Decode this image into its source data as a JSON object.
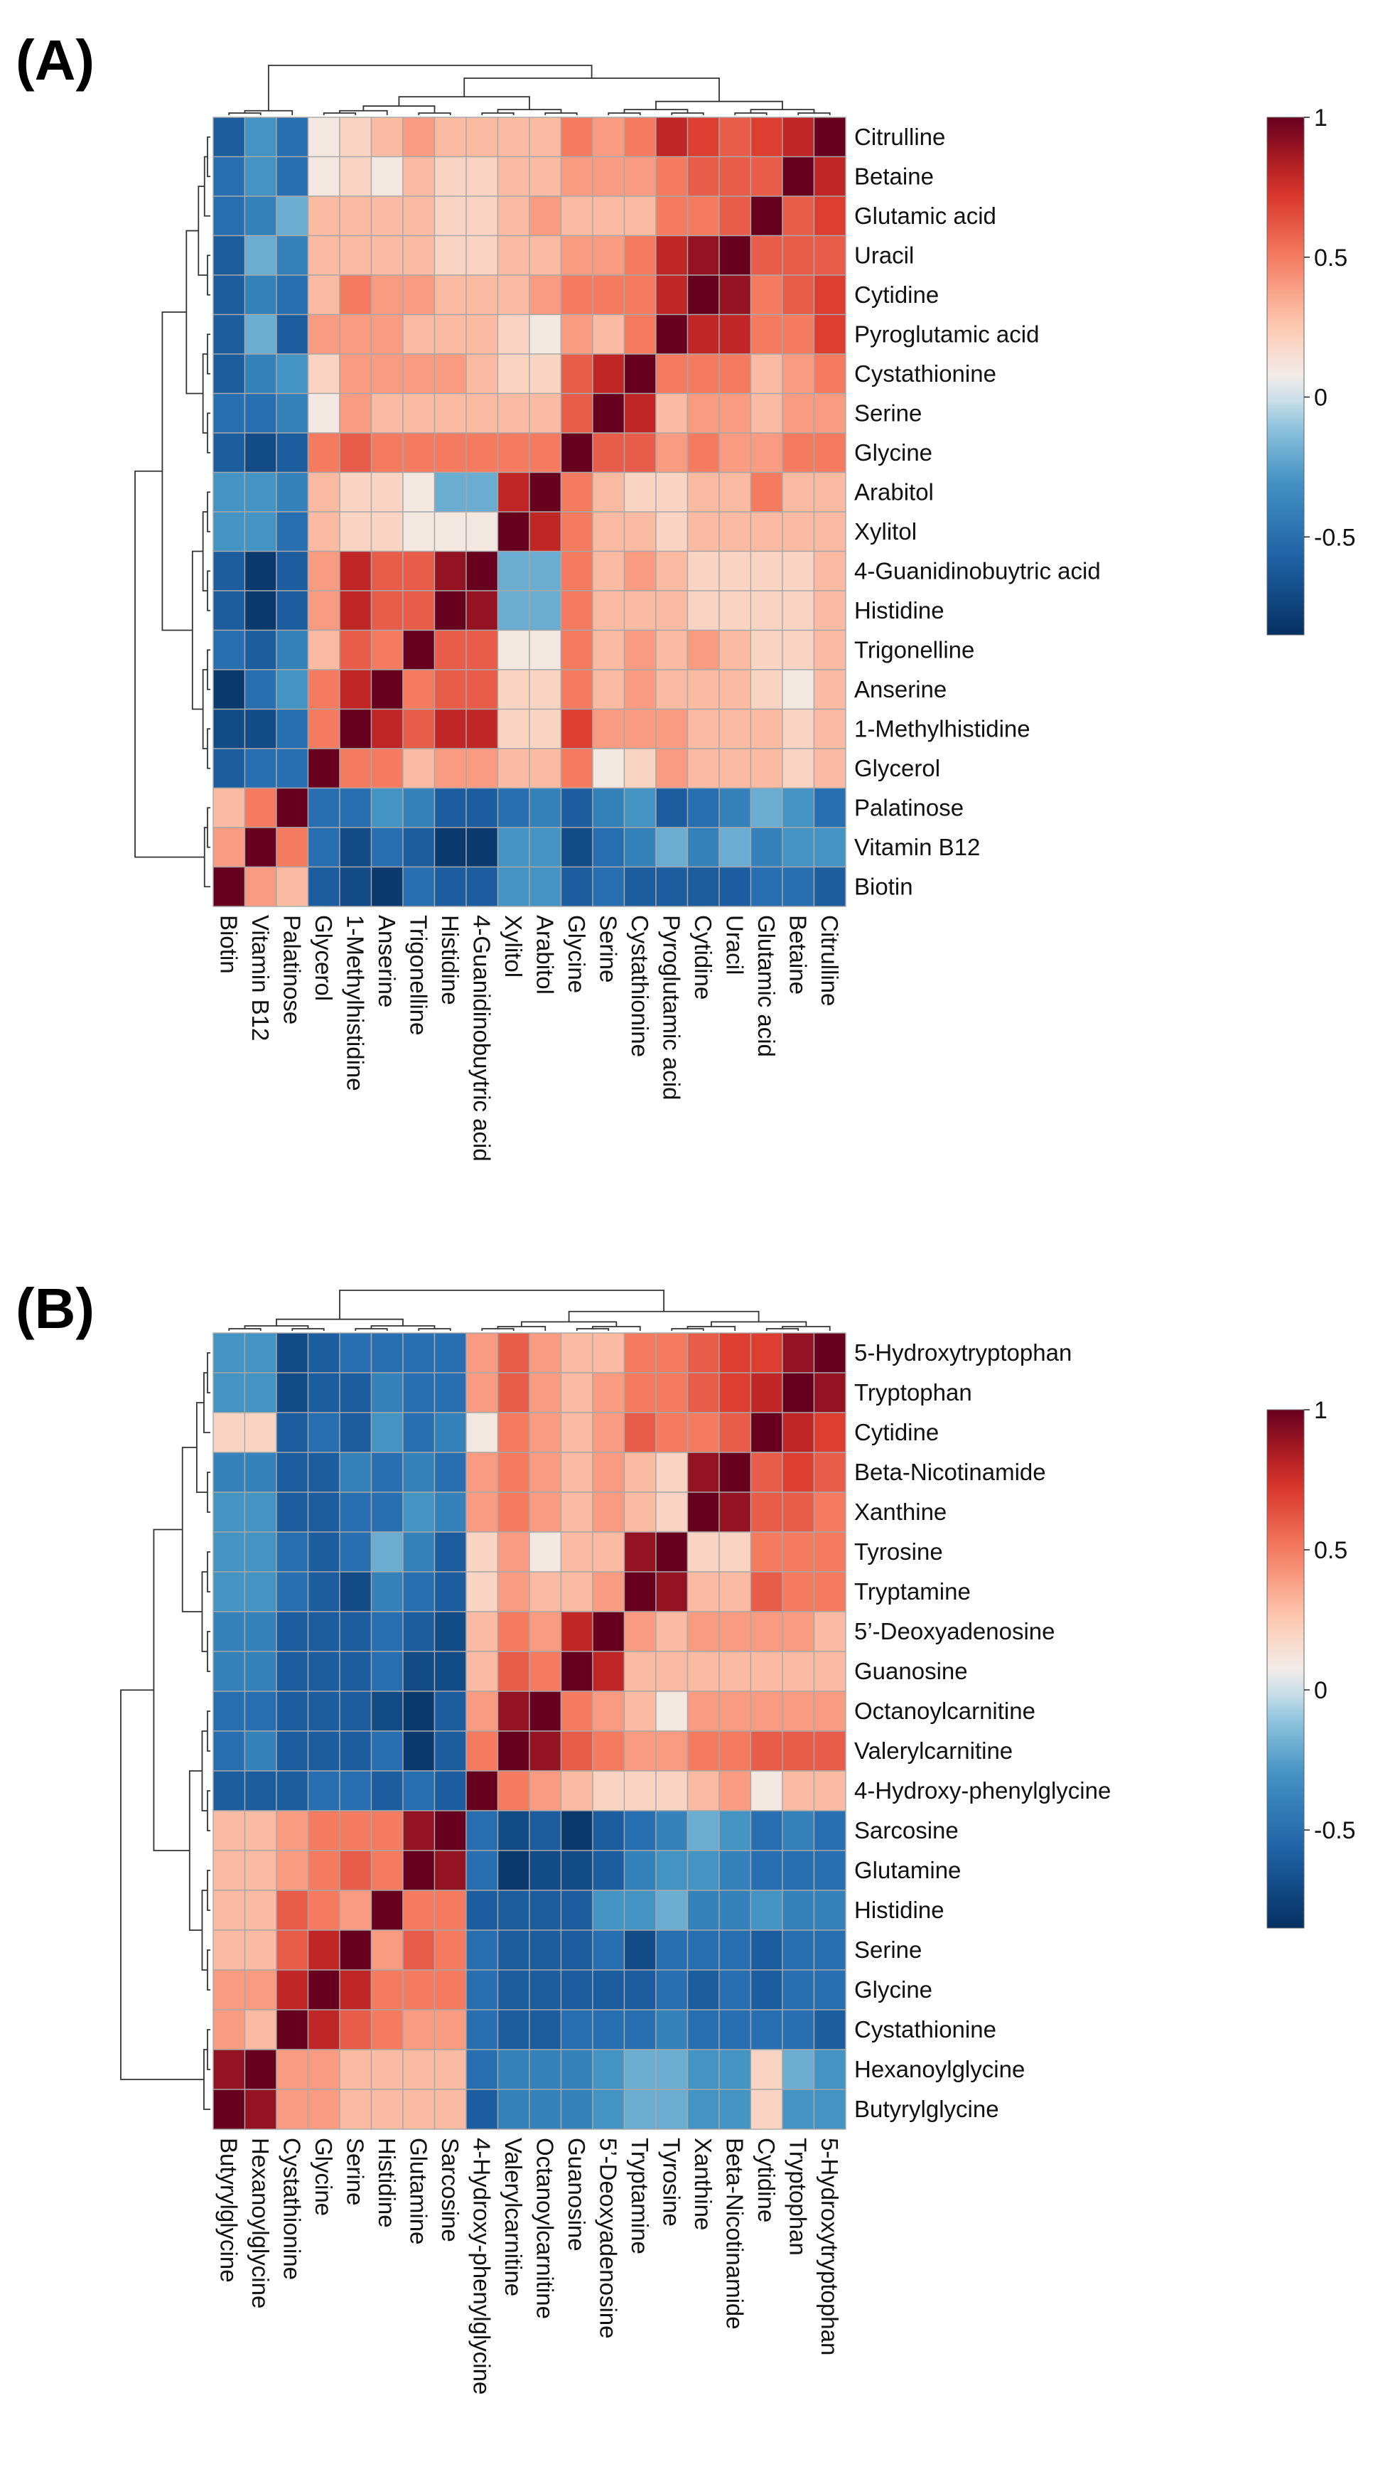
{
  "figure": {
    "panel_labels": [
      "(A)",
      "(B)"
    ]
  },
  "chart_data": [
    {
      "type": "heatmap",
      "panel": "(A)",
      "title": "",
      "row_labels": [
        "Citrulline",
        "Betaine",
        "Glutamic acid",
        "Uracil",
        "Cytidine",
        "Pyroglutamic acid",
        "Cystathionine",
        "Serine",
        "Glycine",
        "Arabitol",
        "Xylitol",
        "4-Guanidinobuytric acid",
        "Histidine",
        "Trigonelline",
        "Anserine",
        "1-Methylhistidine",
        "Glycerol",
        "Palatinose",
        "Vitamin B12",
        "Biotin"
      ],
      "col_labels": [
        "Biotin",
        "Vitamin B12",
        "Palatinose",
        "Glycerol",
        "1-Methylhistidine",
        "Anserine",
        "Trigonelline",
        "Histidine",
        "4-Guanidinobuytric acid",
        "Xylitol",
        "Arabitol",
        "Glycine",
        "Serine",
        "Cystathionine",
        "Pyroglutamic acid",
        "Cytidine",
        "Uracil",
        "Glutamic acid",
        "Betaine",
        "Citrulline"
      ],
      "values": [
        [
          -0.6,
          -0.3,
          -0.5,
          0.1,
          0.2,
          0.3,
          0.4,
          0.3,
          0.3,
          0.3,
          0.3,
          0.5,
          0.4,
          0.5,
          0.8,
          0.7,
          0.6,
          0.7,
          0.8,
          1.0
        ],
        [
          -0.5,
          -0.3,
          -0.5,
          0.1,
          0.2,
          0.1,
          0.3,
          0.2,
          0.2,
          0.3,
          0.3,
          0.4,
          0.4,
          0.4,
          0.5,
          0.6,
          0.6,
          0.6,
          1.0,
          0.8
        ],
        [
          -0.5,
          -0.4,
          -0.2,
          0.3,
          0.3,
          0.3,
          0.3,
          0.2,
          0.2,
          0.3,
          0.4,
          0.3,
          0.3,
          0.3,
          0.5,
          0.5,
          0.6,
          1.0,
          0.6,
          0.7
        ],
        [
          -0.6,
          -0.2,
          -0.4,
          0.3,
          0.3,
          0.3,
          0.3,
          0.2,
          0.2,
          0.3,
          0.3,
          0.4,
          0.4,
          0.5,
          0.8,
          0.9,
          1.0,
          0.6,
          0.6,
          0.6
        ],
        [
          -0.6,
          -0.4,
          -0.5,
          0.3,
          0.5,
          0.4,
          0.4,
          0.3,
          0.3,
          0.3,
          0.4,
          0.5,
          0.5,
          0.5,
          0.8,
          1.0,
          0.9,
          0.5,
          0.6,
          0.7
        ],
        [
          -0.6,
          -0.2,
          -0.6,
          0.4,
          0.4,
          0.4,
          0.3,
          0.3,
          0.3,
          0.2,
          0.1,
          0.4,
          0.3,
          0.5,
          1.0,
          0.8,
          0.8,
          0.5,
          0.5,
          0.7
        ],
        [
          -0.6,
          -0.4,
          -0.3,
          0.2,
          0.4,
          0.4,
          0.4,
          0.4,
          0.3,
          0.2,
          0.2,
          0.6,
          0.8,
          1.0,
          0.5,
          0.5,
          0.5,
          0.3,
          0.4,
          0.5
        ],
        [
          -0.5,
          -0.5,
          -0.4,
          0.1,
          0.4,
          0.3,
          0.3,
          0.3,
          0.3,
          0.3,
          0.3,
          0.6,
          1.0,
          0.8,
          0.3,
          0.4,
          0.4,
          0.3,
          0.4,
          0.4
        ],
        [
          -0.6,
          -0.7,
          -0.6,
          0.5,
          0.6,
          0.5,
          0.5,
          0.5,
          0.5,
          0.5,
          0.5,
          1.0,
          0.6,
          0.6,
          0.4,
          0.5,
          0.4,
          0.4,
          0.5,
          0.5
        ],
        [
          -0.3,
          -0.3,
          -0.4,
          0.3,
          0.2,
          0.2,
          0.1,
          -0.2,
          -0.2,
          0.8,
          1.0,
          0.5,
          0.3,
          0.2,
          0.2,
          0.3,
          0.3,
          0.5,
          0.3,
          0.3
        ],
        [
          -0.3,
          -0.3,
          -0.5,
          0.3,
          0.2,
          0.2,
          0.1,
          0.1,
          0.1,
          1.0,
          0.8,
          0.5,
          0.3,
          0.3,
          0.2,
          0.3,
          0.3,
          0.3,
          0.3,
          0.3
        ],
        [
          -0.6,
          -0.8,
          -0.6,
          0.4,
          0.8,
          0.6,
          0.6,
          0.9,
          1.0,
          -0.2,
          -0.2,
          0.5,
          0.3,
          0.4,
          0.3,
          0.2,
          0.2,
          0.2,
          0.2,
          0.3
        ],
        [
          -0.6,
          -0.8,
          -0.6,
          0.4,
          0.8,
          0.6,
          0.6,
          1.0,
          0.9,
          -0.2,
          -0.2,
          0.5,
          0.3,
          0.3,
          0.3,
          0.2,
          0.2,
          0.2,
          0.2,
          0.3
        ],
        [
          -0.5,
          -0.6,
          -0.4,
          0.3,
          0.6,
          0.5,
          1.0,
          0.6,
          0.6,
          0.1,
          0.1,
          0.5,
          0.3,
          0.4,
          0.3,
          0.4,
          0.3,
          0.2,
          0.2,
          0.3
        ],
        [
          -0.8,
          -0.5,
          -0.3,
          0.5,
          0.8,
          1.0,
          0.5,
          0.6,
          0.6,
          0.2,
          0.2,
          0.5,
          0.3,
          0.4,
          0.3,
          0.3,
          0.3,
          0.2,
          0.1,
          0.3
        ],
        [
          -0.7,
          -0.7,
          -0.5,
          0.5,
          1.0,
          0.8,
          0.6,
          0.8,
          0.8,
          0.2,
          0.2,
          0.7,
          0.4,
          0.4,
          0.4,
          0.3,
          0.3,
          0.3,
          0.2,
          0.3
        ],
        [
          -0.6,
          -0.5,
          -0.5,
          1.0,
          0.5,
          0.5,
          0.3,
          0.4,
          0.4,
          0.3,
          0.3,
          0.5,
          0.1,
          0.2,
          0.4,
          0.3,
          0.3,
          0.3,
          0.2,
          0.3
        ],
        [
          0.3,
          0.5,
          1.0,
          -0.5,
          -0.5,
          -0.3,
          -0.4,
          -0.6,
          -0.6,
          -0.5,
          -0.4,
          -0.6,
          -0.4,
          -0.3,
          -0.6,
          -0.5,
          -0.4,
          -0.2,
          -0.3,
          -0.5
        ],
        [
          0.4,
          1.0,
          0.5,
          -0.5,
          -0.7,
          -0.5,
          -0.6,
          -0.8,
          -0.8,
          -0.3,
          -0.3,
          -0.7,
          -0.5,
          -0.4,
          -0.2,
          -0.4,
          -0.2,
          -0.4,
          -0.3,
          -0.3
        ],
        [
          1.0,
          0.4,
          0.3,
          -0.6,
          -0.7,
          -0.8,
          -0.5,
          -0.6,
          -0.6,
          -0.3,
          -0.3,
          -0.6,
          -0.5,
          -0.6,
          -0.6,
          -0.6,
          -0.6,
          -0.5,
          -0.5,
          -0.6
        ]
      ],
      "colorbar": {
        "ticks": [
          "1",
          "0.5",
          "0",
          "-0.5"
        ],
        "tick_values": [
          1,
          0.5,
          0,
          -0.5
        ],
        "range": [
          -0.85,
          1
        ]
      }
    },
    {
      "type": "heatmap",
      "panel": "(B)",
      "title": "",
      "row_labels": [
        "5-Hydroxytryptophan",
        "Tryptophan",
        "Cytidine",
        "Beta-Nicotinamide",
        "Xanthine",
        "Tyrosine",
        "Tryptamine",
        "5’-Deoxyadenosine",
        "Guanosine",
        "Octanoylcarnitine",
        "Valerylcarnitine",
        "4-Hydroxy-phenylglycine",
        "Sarcosine",
        "Glutamine",
        "Histidine",
        "Serine",
        "Glycine",
        "Cystathionine",
        "Hexanoylglycine",
        "Butyrylglycine"
      ],
      "col_labels": [
        "Butyrylglycine",
        "Hexanoylglycine",
        "Cystathionine",
        "Glycine",
        "Serine",
        "Histidine",
        "Glutamine",
        "Sarcosine",
        "4-Hydroxy-phenylglycine",
        "Valerylcarnitine",
        "Octanoylcarnitine",
        "Guanosine",
        "5’-Deoxyadenosine",
        "Tryptamine",
        "Tyrosine",
        "Xanthine",
        "Beta-Nicotinamide",
        "Cytidine",
        "Tryptophan",
        "5-Hydroxytryptophan"
      ],
      "values": [
        [
          -0.3,
          -0.3,
          -0.7,
          -0.6,
          -0.5,
          -0.5,
          -0.5,
          -0.5,
          0.4,
          0.6,
          0.4,
          0.3,
          0.3,
          0.5,
          0.5,
          0.6,
          0.7,
          0.7,
          0.9,
          1.0
        ],
        [
          -0.3,
          -0.3,
          -0.7,
          -0.6,
          -0.6,
          -0.4,
          -0.5,
          -0.5,
          0.4,
          0.6,
          0.4,
          0.3,
          0.4,
          0.5,
          0.5,
          0.6,
          0.7,
          0.8,
          1.0,
          0.9
        ],
        [
          0.2,
          0.2,
          -0.6,
          -0.5,
          -0.6,
          -0.3,
          -0.5,
          -0.4,
          0.1,
          0.5,
          0.4,
          0.3,
          0.4,
          0.6,
          0.5,
          0.5,
          0.6,
          1.0,
          0.8,
          0.7
        ],
        [
          -0.4,
          -0.4,
          -0.6,
          -0.6,
          -0.4,
          -0.5,
          -0.4,
          -0.5,
          0.4,
          0.5,
          0.4,
          0.3,
          0.4,
          0.3,
          0.2,
          0.9,
          1.0,
          0.6,
          0.7,
          0.6
        ],
        [
          -0.3,
          -0.3,
          -0.6,
          -0.6,
          -0.5,
          -0.5,
          -0.3,
          -0.4,
          0.4,
          0.5,
          0.4,
          0.3,
          0.4,
          0.3,
          0.2,
          1.0,
          0.9,
          0.6,
          0.6,
          0.5
        ],
        [
          -0.3,
          -0.3,
          -0.5,
          -0.6,
          -0.5,
          -0.2,
          -0.4,
          -0.6,
          0.2,
          0.4,
          0.1,
          0.3,
          0.3,
          0.9,
          1.0,
          0.2,
          0.2,
          0.5,
          0.5,
          0.5
        ],
        [
          -0.3,
          -0.3,
          -0.5,
          -0.6,
          -0.7,
          -0.4,
          -0.5,
          -0.6,
          0.2,
          0.4,
          0.3,
          0.3,
          0.4,
          1.0,
          0.9,
          0.3,
          0.3,
          0.6,
          0.5,
          0.5
        ],
        [
          -0.4,
          -0.4,
          -0.6,
          -0.6,
          -0.6,
          -0.5,
          -0.6,
          -0.7,
          0.3,
          0.5,
          0.4,
          0.8,
          1.0,
          0.4,
          0.3,
          0.4,
          0.4,
          0.4,
          0.4,
          0.3
        ],
        [
          -0.4,
          -0.4,
          -0.6,
          -0.6,
          -0.6,
          -0.5,
          -0.7,
          -0.7,
          0.3,
          0.6,
          0.5,
          1.0,
          0.8,
          0.3,
          0.3,
          0.3,
          0.3,
          0.3,
          0.3,
          0.3
        ],
        [
          -0.5,
          -0.5,
          -0.6,
          -0.6,
          -0.6,
          -0.7,
          -0.8,
          -0.6,
          0.4,
          0.9,
          1.0,
          0.5,
          0.4,
          0.3,
          0.1,
          0.4,
          0.4,
          0.4,
          0.4,
          0.4
        ],
        [
          -0.5,
          -0.4,
          -0.6,
          -0.6,
          -0.6,
          -0.5,
          -0.8,
          -0.6,
          0.5,
          1.0,
          0.9,
          0.6,
          0.5,
          0.4,
          0.4,
          0.5,
          0.5,
          0.6,
          0.6,
          0.6
        ],
        [
          -0.6,
          -0.6,
          -0.6,
          -0.5,
          -0.5,
          -0.6,
          -0.5,
          -0.6,
          1.0,
          0.5,
          0.4,
          0.3,
          0.2,
          0.2,
          0.2,
          0.3,
          0.4,
          0.1,
          0.3,
          0.3
        ],
        [
          0.3,
          0.3,
          0.4,
          0.5,
          0.5,
          0.5,
          0.9,
          1.0,
          -0.5,
          -0.7,
          -0.6,
          -0.8,
          -0.6,
          -0.5,
          -0.4,
          -0.2,
          -0.3,
          -0.5,
          -0.4,
          -0.5
        ],
        [
          0.3,
          0.3,
          0.4,
          0.5,
          0.6,
          0.5,
          1.0,
          0.9,
          -0.5,
          -0.8,
          -0.7,
          -0.7,
          -0.6,
          -0.4,
          -0.3,
          -0.3,
          -0.4,
          -0.5,
          -0.5,
          -0.5
        ],
        [
          0.3,
          0.3,
          0.6,
          0.5,
          0.4,
          1.0,
          0.5,
          0.5,
          -0.6,
          -0.6,
          -0.6,
          -0.6,
          -0.3,
          -0.3,
          -0.2,
          -0.4,
          -0.4,
          -0.3,
          -0.4,
          -0.4
        ],
        [
          0.3,
          0.3,
          0.6,
          0.8,
          1.0,
          0.4,
          0.6,
          0.5,
          -0.5,
          -0.6,
          -0.6,
          -0.6,
          -0.5,
          -0.7,
          -0.5,
          -0.5,
          -0.5,
          -0.6,
          -0.5,
          -0.5
        ],
        [
          0.4,
          0.4,
          0.8,
          1.0,
          0.8,
          0.5,
          0.5,
          0.5,
          -0.5,
          -0.6,
          -0.6,
          -0.6,
          -0.6,
          -0.6,
          -0.5,
          -0.6,
          -0.5,
          -0.6,
          -0.5,
          -0.5
        ],
        [
          0.4,
          0.3,
          1.0,
          0.8,
          0.6,
          0.5,
          0.4,
          0.4,
          -0.5,
          -0.6,
          -0.6,
          -0.5,
          -0.5,
          -0.5,
          -0.4,
          -0.5,
          -0.5,
          -0.5,
          -0.5,
          -0.6
        ],
        [
          0.9,
          1.0,
          0.4,
          0.4,
          0.3,
          0.3,
          0.3,
          0.3,
          -0.5,
          -0.4,
          -0.4,
          -0.4,
          -0.3,
          -0.2,
          -0.2,
          -0.3,
          -0.3,
          0.2,
          -0.2,
          -0.3
        ],
        [
          1.0,
          0.9,
          0.4,
          0.4,
          0.3,
          0.3,
          0.3,
          0.3,
          -0.6,
          -0.4,
          -0.4,
          -0.4,
          -0.3,
          -0.2,
          -0.2,
          -0.3,
          -0.3,
          0.2,
          -0.3,
          -0.3
        ]
      ],
      "colorbar": {
        "ticks": [
          "1",
          "0.5",
          "0",
          "-0.5"
        ],
        "tick_values": [
          1,
          0.5,
          0,
          -0.5
        ],
        "range": [
          -0.85,
          1
        ]
      }
    }
  ]
}
